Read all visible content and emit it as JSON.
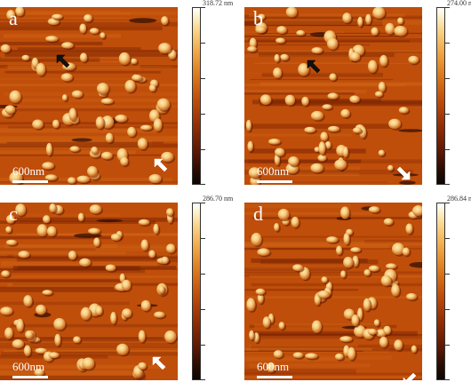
{
  "panels": [
    {
      "letter": "a",
      "scale_label": "600nm",
      "colorbar_max": "318.72 nm",
      "seed": 11,
      "arrows": [
        {
          "color": "#111111",
          "direction": "up-left"
        },
        {
          "color": "#ffffff",
          "direction": "up-left"
        }
      ]
    },
    {
      "letter": "b",
      "scale_label": "600nm",
      "colorbar_max": "274.00 nm",
      "seed": 23,
      "arrows": [
        {
          "color": "#111111",
          "direction": "up-left"
        },
        {
          "color": "#ffffff",
          "direction": "down-right"
        }
      ]
    },
    {
      "letter": "c",
      "scale_label": "600nm",
      "colorbar_max": "286.70 nm",
      "seed": 37,
      "arrows": [
        {
          "color": "#ffffff",
          "direction": "up-left"
        }
      ]
    },
    {
      "letter": "d",
      "scale_label": "600nm",
      "colorbar_max": "286.84 nm",
      "seed": 53,
      "arrows": [
        {
          "color": "#ffffff",
          "direction": "down-left"
        }
      ]
    }
  ],
  "colors": {
    "background_low": "#8f2c04",
    "background_mid": "#bf4e0a",
    "particle_high": "#f7cb7a",
    "particle_peak": "#fbe9b8"
  }
}
